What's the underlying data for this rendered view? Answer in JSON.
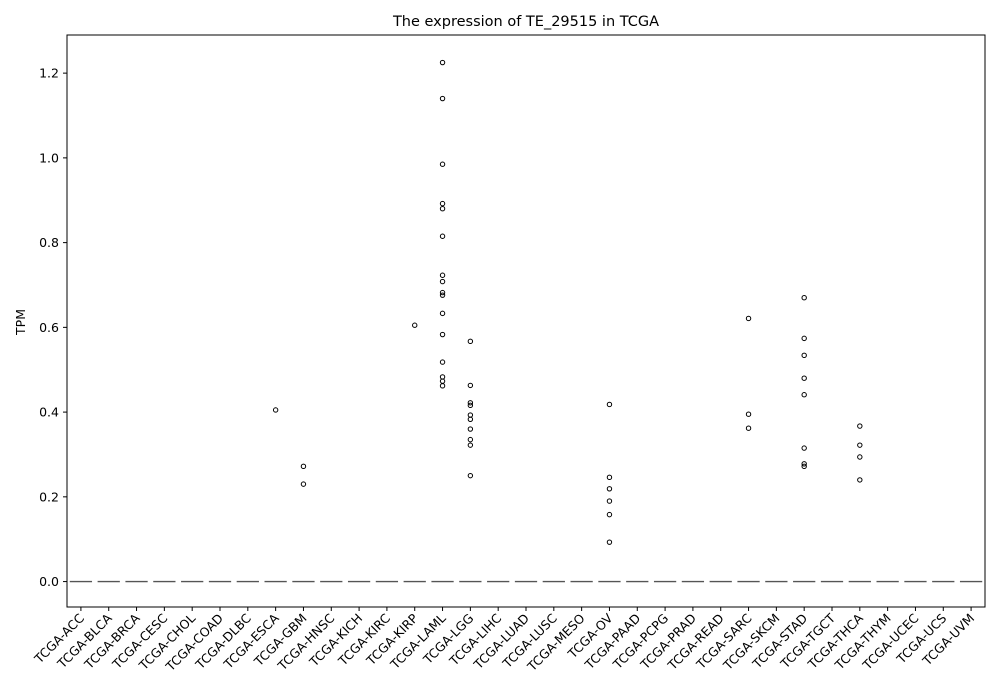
{
  "chart_data": {
    "type": "boxplot",
    "title": "The expression of TE_29515 in TCGA",
    "xlabel": "",
    "ylabel": "TPM",
    "ylim": [
      -0.06,
      1.29
    ],
    "yticks": [
      0.0,
      0.2,
      0.4,
      0.6,
      0.8,
      1.0,
      1.2
    ],
    "ytick_labels": [
      "0.0",
      "0.2",
      "0.4",
      "0.6",
      "0.8",
      "1.0",
      "1.2"
    ],
    "grid": false,
    "legend": "none",
    "categories": [
      "TCGA-ACC",
      "TCGA-BLCA",
      "TCGA-BRCA",
      "TCGA-CESC",
      "TCGA-CHOL",
      "TCGA-COAD",
      "TCGA-DLBC",
      "TCGA-ESCA",
      "TCGA-GBM",
      "TCGA-HNSC",
      "TCGA-KICH",
      "TCGA-KIRC",
      "TCGA-KIRP",
      "TCGA-LAML",
      "TCGA-LGG",
      "TCGA-LIHC",
      "TCGA-LUAD",
      "TCGA-LUSC",
      "TCGA-MESO",
      "TCGA-OV",
      "TCGA-PAAD",
      "TCGA-PCPG",
      "TCGA-PRAD",
      "TCGA-READ",
      "TCGA-SARC",
      "TCGA-SKCM",
      "TCGA-STAD",
      "TCGA-TGCT",
      "TCGA-THCA",
      "TCGA-THYM",
      "TCGA-UCEC",
      "TCGA-UCS",
      "TCGA-UVM"
    ],
    "median": 0.0,
    "outliers": {
      "TCGA-ESCA": [
        0.405
      ],
      "TCGA-GBM": [
        0.272,
        0.23
      ],
      "TCGA-KIRP": [
        0.605
      ],
      "TCGA-LAML": [
        1.225,
        1.14,
        0.985,
        0.892,
        0.88,
        0.815,
        0.723,
        0.708,
        0.682,
        0.676,
        0.633,
        0.583,
        0.518,
        0.483,
        0.473,
        0.462
      ],
      "TCGA-LGG": [
        0.567,
        0.463,
        0.422,
        0.416,
        0.393,
        0.383,
        0.36,
        0.335,
        0.322,
        0.25
      ],
      "TCGA-OV": [
        0.418,
        0.246,
        0.219,
        0.19,
        0.158,
        0.093
      ],
      "TCGA-SARC": [
        0.621,
        0.395,
        0.362
      ],
      "TCGA-STAD": [
        0.67,
        0.574,
        0.534,
        0.48,
        0.441,
        0.315,
        0.278,
        0.272
      ],
      "TCGA-THCA": [
        0.367,
        0.322,
        0.294,
        0.24
      ]
    }
  },
  "colors": {
    "axis": "#000000",
    "median_line": "#555555",
    "outlier_edge": "#000000"
  }
}
